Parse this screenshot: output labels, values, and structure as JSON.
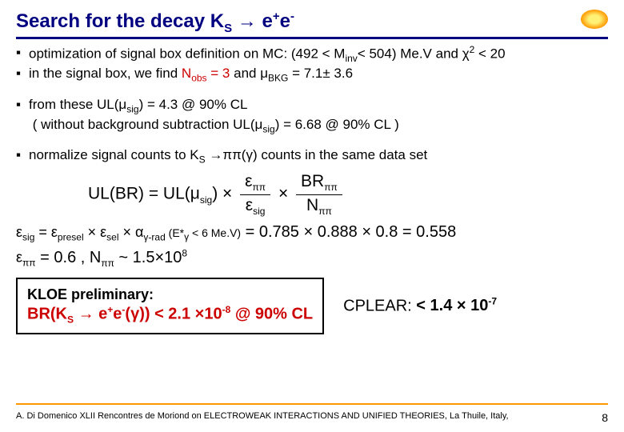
{
  "title_parts": {
    "a": "Search for the decay K",
    "s_sub": "S",
    "arrow": " → e",
    "plus": "+",
    "e2": "e",
    "minus": "-"
  },
  "bullets": {
    "b1a": "optimization of signal box definition on MC: (492 < M",
    "b1_inv": "inv",
    "b1b": "< 504) Me.V and χ",
    "b1_sq": "2",
    "b1c": " < 20",
    "b2a": "in the signal box, we find ",
    "b2_nobs": "N",
    "b2_obs": "obs",
    "b2_eq3": " = 3",
    "b2_and": " and μ",
    "b2_bkg": "BKG",
    "b2_val": " = 7.1± 3.6",
    "b3a": "from these  UL(μ",
    "b3_sig": "sig",
    "b3b": ") = 4.3 @ 90% CL",
    "b3c": "( without background subtraction UL(μ",
    "b3d": ") = 6.68 @ 90% CL )",
    "b4a": "normalize signal counts to K",
    "b4_s": "S",
    "b4b": " →ππ(γ) counts in the same data set"
  },
  "formula": {
    "lhs": "UL(BR) = UL(μ",
    "sig": "sig",
    "rhs1": ") × ",
    "n1a": "ε",
    "n1b": "ππ",
    "d1a": "ε",
    "d1b": "sig",
    "mid": " × ",
    "n2a": "BR",
    "n2b": "ππ",
    "d2a": "N",
    "d2b": "ππ"
  },
  "eff": {
    "line1a": "ε",
    "line1_sig": "sig",
    "line1b": " = ε",
    "line1_presel": "presel",
    "line1c": " × ε",
    "line1_sel": "sel",
    "line1d": " × α",
    "line1_grad": "γ-rad",
    "line1e": " (E*",
    "line1_gamma": "γ",
    "line1f": " < 6 Me.V)",
    "line1_vals": " = 0.785 × 0.888 × 0.8 = 0.558",
    "line2a": "ε",
    "line2_pp": "ππ",
    "line2b": " = 0.6 ,  N",
    "line2_pp2": "ππ",
    "line2c": " ~ 1.5×10",
    "line2_8": "8"
  },
  "result": {
    "prelim": "KLOE preliminary:",
    "br1": "BR(K",
    "br_s": "S",
    "br2": " → e",
    "br_plus": "+",
    "br3": "e",
    "br_minus": "-",
    "br4": "(γ)) < 2.1 ×10",
    "br_exp": "-8",
    "br5": " @ 90% CL",
    "cplear1": "CPLEAR: ",
    "cplear2": "< 1.4 × 10",
    "cplear_exp": "-7"
  },
  "footer": {
    "text": "A. Di Domenico   XLII Rencontres de Moriond on ELECTROWEAK INTERACTIONS AND UNIFIED THEORIES, La Thuile, Italy,",
    "page": "8"
  }
}
